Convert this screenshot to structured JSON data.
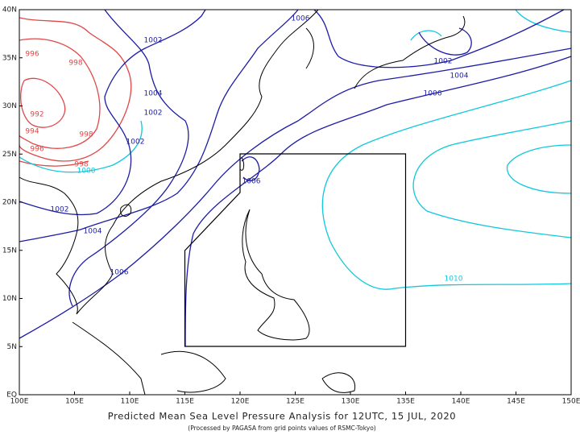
{
  "map": {
    "title": "Predicted Mean Sea Level Pressure Analysis for 12UTC, 15 JUL, 2020",
    "subtitle": "(Processed by PAGASA from grid points values of RSMC-Tokyo)",
    "x_axis_labels": [
      "100E",
      "105E",
      "110E",
      "115E",
      "120E",
      "125E",
      "130E",
      "135E",
      "140E",
      "145E",
      "150E"
    ],
    "y_axis_labels": [
      "EQ",
      "5N",
      "10N",
      "15N",
      "20N",
      "25N",
      "30N",
      "35N",
      "40N"
    ],
    "contour_labels": [
      "1006",
      "1002",
      "996",
      "998",
      "1004",
      "1002",
      "992",
      "994",
      "998",
      "996",
      "1002",
      "998",
      "1000",
      "1002",
      "1004",
      "1006",
      "1006",
      "1002",
      "1004",
      "1006",
      "1010"
    ]
  }
}
